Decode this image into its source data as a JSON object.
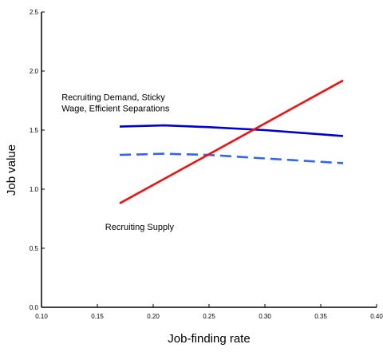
{
  "chart_data": {
    "type": "line",
    "xlabel": "Job-finding rate",
    "ylabel": "Job value",
    "xlim": [
      0.1,
      0.4
    ],
    "ylim": [
      0.0,
      2.5
    ],
    "x_ticks": [
      "0.10",
      "0.15",
      "0.20",
      "0.25",
      "0.30",
      "0.35",
      "0.40"
    ],
    "y_ticks": [
      "0.0",
      "0.5",
      "1.0",
      "1.5",
      "2.0",
      "2.5"
    ],
    "grid": false,
    "legend": "none",
    "series": [
      {
        "style": "solid",
        "color": "#0000cc",
        "x": [
          0.17,
          0.21,
          0.25,
          0.3,
          0.37
        ],
        "y": [
          1.53,
          1.54,
          1.525,
          1.5,
          1.45
        ]
      },
      {
        "style": "dashed",
        "color": "#3366ee",
        "x": [
          0.17,
          0.21,
          0.25,
          0.3,
          0.37
        ],
        "y": [
          1.29,
          1.3,
          1.29,
          1.26,
          1.22
        ]
      },
      {
        "style": "solid",
        "color": "#ee1111",
        "x": [
          0.17,
          0.37
        ],
        "y": [
          0.88,
          1.92
        ]
      }
    ],
    "annotations": [
      {
        "lines": [
          "Recruiting Demand, Sticky",
          "Wage, Efficient Separations"
        ],
        "at_x": 0.118,
        "at_y": 1.755
      },
      {
        "lines": [
          "Recruiting Supply"
        ],
        "at_x": 0.157,
        "at_y": 0.655
      }
    ]
  }
}
